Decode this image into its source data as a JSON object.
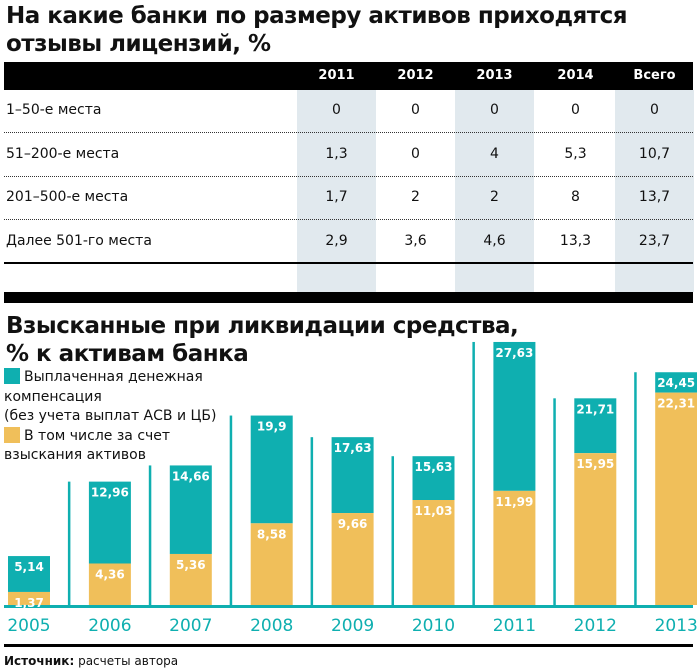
{
  "table": {
    "title": "На какие банки по размеру активов приходятся отзывы лицензий, %",
    "title_lines": [
      "На какие банки по размеру активов приходятся",
      "отзывы лицензий, %"
    ],
    "columns": [
      "2011",
      "2012",
      "2013",
      "2014",
      "Всего"
    ],
    "rows": [
      {
        "label": "1–50-е места",
        "values": [
          "0",
          "0",
          "0",
          "0",
          "0"
        ]
      },
      {
        "label": "51–200-е места",
        "values": [
          "1,3",
          "0",
          "4",
          "5,3",
          "10,7"
        ]
      },
      {
        "label": "201–500-е места",
        "values": [
          "1,7",
          "2",
          "2",
          "8",
          "13,7"
        ]
      },
      {
        "label": "Далее 501-го места",
        "values": [
          "2,9",
          "3,6",
          "4,6",
          "13,3",
          "23,7"
        ]
      }
    ]
  },
  "chart_data": {
    "type": "bar",
    "title": "Взысканные при ликвидации средства, % к активам банка",
    "title_lines": [
      "Взысканные при ликвидации средства,",
      "% к активам банка"
    ],
    "categories": [
      "2005",
      "2006",
      "2007",
      "2008",
      "2009",
      "2010",
      "2011",
      "2012",
      "2013"
    ],
    "series": [
      {
        "name": "Выплаченная денежная компенсация (без учета выплат АСВ и ЦБ)",
        "color": "#0fafb0",
        "values": [
          5.14,
          12.96,
          14.66,
          19.9,
          17.63,
          15.63,
          27.63,
          21.71,
          24.45
        ],
        "labels": [
          "5,14",
          "12,96",
          "14,66",
          "19,9",
          "17,63",
          "15,63",
          "27,63",
          "21,71",
          "24,45"
        ]
      },
      {
        "name": "В том числе за счет взыскания активов",
        "color": "#f0bf5a",
        "values": [
          1.37,
          4.36,
          5.36,
          8.58,
          9.66,
          11.03,
          11.99,
          15.95,
          22.31
        ],
        "labels": [
          "1,37",
          "4,36",
          "5,36",
          "8,58",
          "9,66",
          "11,03",
          "11,99",
          "15,95",
          "22,31"
        ]
      }
    ],
    "legend": {
      "teal_lines": [
        "Выплаченная денежная",
        "компенсация",
        "(без учета выплат АСВ и ЦБ)"
      ],
      "yellow_lines": [
        "В том числе за счет",
        "взыскания активов"
      ],
      "placement": "top-left"
    },
    "ylim": [
      0,
      30
    ]
  },
  "source": {
    "label": "Источник:",
    "text": "расчеты автора"
  }
}
